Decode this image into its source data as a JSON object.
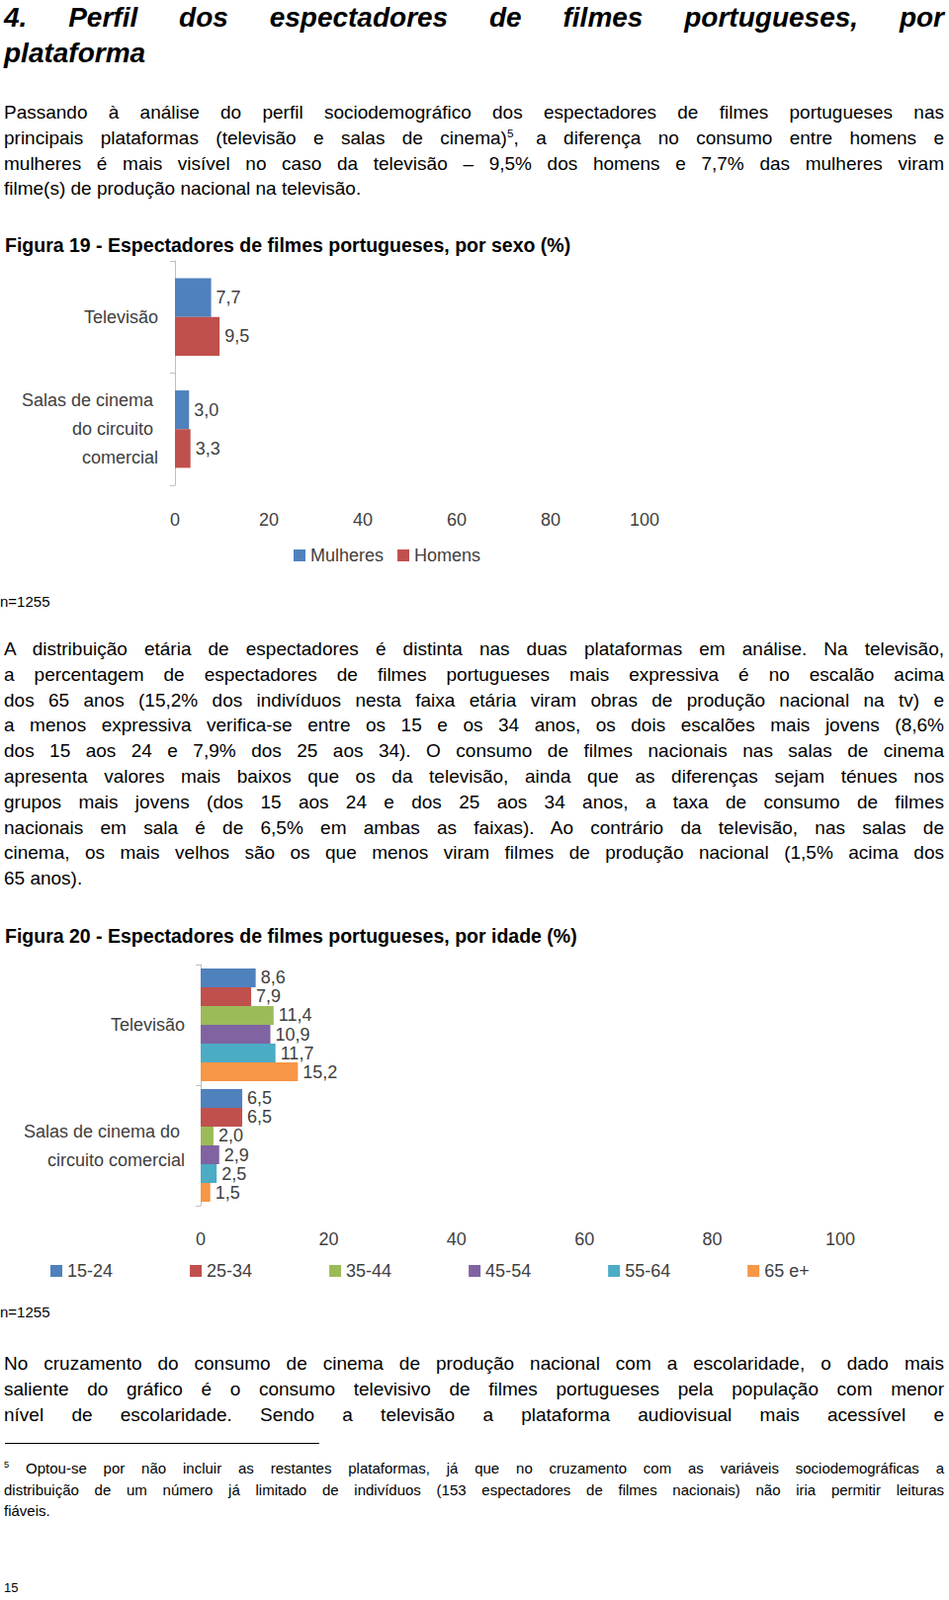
{
  "heading": {
    "lines": [
      "4. Perfil dos espectadores de filmes portugueses, por",
      "plataforma"
    ]
  },
  "paragraphs": [
    {
      "lines": [
        "Passando à análise do perfil sociodemográfico dos espectadores de filmes portugueses nas",
        {
          "text": "principais plataformas (televisão e salas de cinema)",
          "sup": "5",
          "after": ", a diferença no consumo entre homens e"
        },
        "mulheres é mais visível no caso da televisão – 9,5% dos homens e 7,7% das mulheres viram",
        "filme(s) de produção nacional na televisão."
      ]
    },
    {
      "lines": [
        "A distribuição etária de espectadores é distinta nas duas plataformas em análise. Na televisão,",
        "a percentagem de espectadores de filmes portugueses mais expressiva é no escalão acima",
        "dos 65 anos (15,2% dos indivíduos nesta faixa etária viram obras de produção nacional na tv) e",
        "a menos expressiva verifica-se entre os 15 e os 34 anos, os dois escalões mais jovens (8,6%",
        "dos 15 aos 24 e 7,9% dos 25 aos 34). O consumo de filmes nacionais nas salas de cinema",
        "apresenta valores mais baixos que os da televisão, ainda que as diferenças sejam ténues nos",
        "grupos mais jovens (dos 15 aos 24 e dos 25 aos 34 anos, a taxa de consumo de filmes",
        "nacionais em sala é de 6,5% em ambas as faixas). Ao contrário da televisão, nas salas de",
        "cinema, os mais velhos são os que menos viram filmes de produção nacional (1,5% acima dos",
        "65 anos)."
      ]
    },
    {
      "lines": [
        "No cruzamento do consumo de cinema de produção nacional com a escolaridade, o dado mais",
        "saliente do gráfico é o consumo televisivo de filmes portugueses pela população com menor",
        "nível de escolaridade. Sendo a televisão a plataforma audiovisual mais acessível e"
      ]
    }
  ],
  "chart_data": [
    {
      "type": "bar",
      "title": "Figura 19 - Espectadores de filmes portugueses, por sexo (%)",
      "orientation": "horizontal",
      "categories": [
        "Salas de cinema do circuito comercial",
        "Televisão"
      ],
      "series": [
        {
          "name": "Mulheres",
          "color": "#4f81bd",
          "values": [
            3.0,
            7.7
          ],
          "value_labels": [
            "3,0",
            "7,7"
          ]
        },
        {
          "name": "Homens",
          "color": "#c0504d",
          "values": [
            3.3,
            9.5
          ],
          "value_labels": [
            "3,3",
            "9,5"
          ]
        }
      ],
      "xlim": [
        0,
        100
      ],
      "xticks": [
        0,
        20,
        40,
        60,
        80,
        100
      ],
      "grid": false,
      "data_labels": true,
      "legend": "bottom",
      "annotations": [
        "n=1255"
      ]
    },
    {
      "type": "bar",
      "title": "Figura 20 - Espectadores de filmes portugueses, por idade (%)",
      "orientation": "horizontal",
      "categories": [
        "Salas de cinema do circuito comercial",
        "Televisão"
      ],
      "series": [
        {
          "name": "15-24",
          "color": "#4f81bd",
          "values": [
            6.5,
            8.6
          ],
          "value_labels": [
            "6,5",
            "8,6"
          ]
        },
        {
          "name": "25-34",
          "color": "#c0504d",
          "values": [
            6.5,
            7.9
          ],
          "value_labels": [
            "6,5",
            "7,9"
          ]
        },
        {
          "name": "35-44",
          "color": "#9bbb59",
          "values": [
            2.0,
            11.4
          ],
          "value_labels": [
            "2,0",
            "11,4"
          ]
        },
        {
          "name": "45-54",
          "color": "#8064a2",
          "values": [
            2.9,
            10.9
          ],
          "value_labels": [
            "2,9",
            "10,9"
          ]
        },
        {
          "name": "55-64",
          "color": "#4bacc6",
          "values": [
            2.5,
            11.7
          ],
          "value_labels": [
            "2,5",
            "11,7"
          ]
        },
        {
          "name": "65 e+",
          "color": "#f79646",
          "values": [
            1.5,
            15.2
          ],
          "value_labels": [
            "1,5",
            "15,2"
          ]
        }
      ],
      "xlim": [
        0,
        100
      ],
      "xticks": [
        0,
        20,
        40,
        60,
        80,
        100
      ],
      "grid": false,
      "data_labels": true,
      "legend": "bottom",
      "annotations": [
        "n=1255"
      ]
    }
  ],
  "footnote": {
    "mark": "5",
    "lines": [
      "Optou-se por não incluir as restantes plataformas, já que no cruzamento com as variáveis sociodemográficas a",
      "distribuição de um número já limitado de indivíduos (153 espectadores de filmes nacionais) não iria permitir leituras",
      "fiáveis."
    ]
  },
  "page_number": "15"
}
